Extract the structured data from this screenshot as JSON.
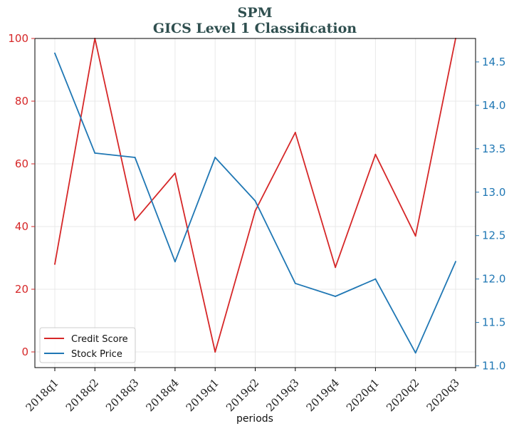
{
  "chart_data": {
    "type": "line",
    "title": "SPM",
    "subtitle": "GICS Level 1 Classification",
    "xlabel": "periods",
    "categories": [
      "2018q1",
      "2018q2",
      "2018q3",
      "2018q4",
      "2019q1",
      "2019q2",
      "2019q3",
      "2019q4",
      "2020q1",
      "2020q2",
      "2020q3"
    ],
    "series": [
      {
        "name": "Credit Score",
        "axis": "left",
        "color": "#d62728",
        "values": [
          28,
          100,
          42,
          57,
          0,
          45,
          70,
          27,
          63,
          37,
          100
        ]
      },
      {
        "name": "Stock Price",
        "axis": "right",
        "color": "#1f77b4",
        "values": [
          14.6,
          13.45,
          13.4,
          12.2,
          13.4,
          12.9,
          11.95,
          11.8,
          12.0,
          11.15,
          12.2
        ]
      }
    ],
    "y_left": {
      "ylim": [
        -5,
        100
      ],
      "ticks": [
        0,
        20,
        40,
        60,
        80,
        100
      ],
      "color": "#d62728"
    },
    "y_right": {
      "ylim": [
        10.98,
        14.77
      ],
      "ticks": [
        11.0,
        11.5,
        12.0,
        12.5,
        13.0,
        13.5,
        14.0,
        14.5
      ],
      "tick_labels": [
        "11.0",
        "11.5",
        "12.0",
        "12.5",
        "13.0",
        "13.5",
        "14.0",
        "14.5"
      ],
      "color": "#1f77b4"
    },
    "grid": true,
    "legend": "lower-left"
  }
}
